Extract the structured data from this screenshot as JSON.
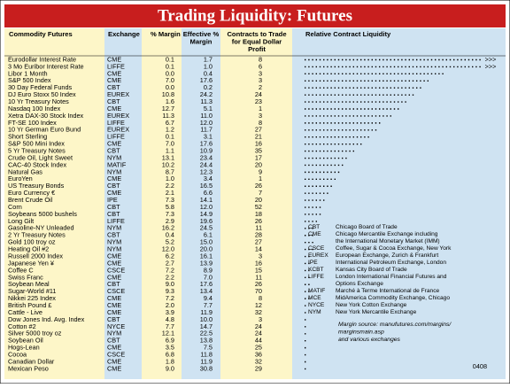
{
  "header": {
    "title": "Trading Liquidity: Futures"
  },
  "table": {
    "columns": [
      "Commodity Futures",
      "Exchange",
      "% Margin",
      "Effective % Margin",
      "Contracts to Trade for Equal Dollar Profit",
      "Relative Contract Liquidity"
    ],
    "rows": [
      {
        "cells": [
          "Eurodollar Interest Rate",
          "CME",
          "0.1",
          "1.7",
          "8"
        ],
        "liquidity": 48,
        "more": ">>>"
      },
      {
        "cells": [
          "3 Mo Euribor Interest Rate",
          "LIFFE",
          "0.1",
          "1.0",
          "6"
        ],
        "liquidity": 48,
        "more": ">>>"
      },
      {
        "cells": [
          "Libor 1 Month",
          "CME",
          "0.0",
          "0.4",
          "3"
        ],
        "liquidity": 38
      },
      {
        "cells": [
          "S&P 500 Index",
          "CME",
          "7.0",
          "17.6",
          "3"
        ],
        "liquidity": 34
      },
      {
        "cells": [
          "30 Day Federal Funds",
          "CBT",
          "0.0",
          "0.2",
          "2"
        ],
        "liquidity": 32
      },
      {
        "cells": [
          "DJ Euro Stoxx 50 Index",
          "EUREX",
          "10.8",
          "24.2",
          "24"
        ],
        "liquidity": 30
      },
      {
        "cells": [
          "10 Yr Treasury Notes",
          "CBT",
          "1.6",
          "11.3",
          "23"
        ],
        "liquidity": 28
      },
      {
        "cells": [
          "Nasdaq 100 Index",
          "CME",
          "12.7",
          "5.1",
          "1"
        ],
        "liquidity": 26
      },
      {
        "cells": [
          "Xetra DAX-30 Stock Index",
          "EUREX",
          "11.3",
          "11.0",
          "3"
        ],
        "liquidity": 24
      },
      {
        "cells": [
          "FT-SE 100 Index",
          "LIFFE",
          "6.7",
          "12.0",
          "8"
        ],
        "liquidity": 21
      },
      {
        "cells": [
          "10 Yr German Euro Bund",
          "EUREX",
          "1.2",
          "11.7",
          "27"
        ],
        "liquidity": 20
      },
      {
        "cells": [
          "Short Sterling",
          "LIFFE",
          "0.1",
          "3.1",
          "21"
        ],
        "liquidity": 18
      },
      {
        "cells": [
          "S&P 500 Mini Index",
          "CME",
          "7.0",
          "17.6",
          "16"
        ],
        "liquidity": 16
      },
      {
        "cells": [
          "5 Yr Treasury Notes",
          "CBT",
          "1.1",
          "10.9",
          "35"
        ],
        "liquidity": 14
      },
      {
        "cells": [
          "Crude Oil, Light Sweet",
          "NYM",
          "13.1",
          "23.4",
          "17"
        ],
        "liquidity": 12
      },
      {
        "cells": [
          "CAC-40 Stock Index",
          "MATIF",
          "10.2",
          "24.4",
          "20"
        ],
        "liquidity": 11
      },
      {
        "cells": [
          "Natural Gas",
          "NYM",
          "8.7",
          "12.3",
          "9"
        ],
        "liquidity": 10
      },
      {
        "cells": [
          "EuroYen",
          "CME",
          "1.0",
          "3.4",
          "1"
        ],
        "liquidity": 9
      },
      {
        "cells": [
          "US Treasury Bonds",
          "CBT",
          "2.2",
          "16.5",
          "26"
        ],
        "liquidity": 8
      },
      {
        "cells": [
          "Euro Currency €",
          "CME",
          "2.1",
          "6.6",
          "7"
        ],
        "liquidity": 7
      },
      {
        "cells": [
          "Brent Crude Oil",
          "IPE",
          "7.3",
          "14.1",
          "20"
        ],
        "liquidity": 6
      },
      {
        "cells": [
          "Corn",
          "CBT",
          "5.8",
          "12.0",
          "52"
        ],
        "liquidity": 5
      },
      {
        "cells": [
          "Soybeans 5000 bushels",
          "CBT",
          "7.3",
          "14.9",
          "18"
        ],
        "liquidity": 5
      },
      {
        "cells": [
          "Long Gilt",
          "LIFFE",
          "2.9",
          "19.6",
          "26"
        ],
        "liquidity": 4
      },
      {
        "cells": [
          "Gasoline-NY Unleaded",
          "NYM",
          "16.2",
          "24.5",
          "11"
        ],
        "liquidity": 3
      },
      {
        "cells": [
          "2 Yr Treasury Notes",
          "CBT",
          "0.4",
          "6.1",
          "28"
        ],
        "liquidity": 3
      },
      {
        "cells": [
          "Gold 100 troy oz",
          "NYM",
          "5.2",
          "15.0",
          "27"
        ],
        "liquidity": 3
      },
      {
        "cells": [
          "Heating Oil #2",
          "NYM",
          "12.0",
          "20.0",
          "14"
        ],
        "liquidity": 3
      },
      {
        "cells": [
          "Russell 2000 Index",
          "CME",
          "6.2",
          "16.1",
          "3"
        ],
        "liquidity": 2
      },
      {
        "cells": [
          "Japanese Yen ¥",
          "CME",
          "2.7",
          "13.9",
          "16"
        ],
        "liquidity": 2
      },
      {
        "cells": [
          "Coffee C",
          "CSCE",
          "7.2",
          "8.9",
          "15"
        ],
        "liquidity": 2
      },
      {
        "cells": [
          "Swiss Franc",
          "CME",
          "2.2",
          "7.0",
          "11"
        ],
        "liquidity": 2
      },
      {
        "cells": [
          "Soybean Meal",
          "CBT",
          "9.0",
          "17.6",
          "26"
        ],
        "liquidity": 2
      },
      {
        "cells": [
          "Sugar-World #11",
          "CSCE",
          "9.3",
          "13.4",
          "70"
        ],
        "liquidity": 2
      },
      {
        "cells": [
          "Nikkei 225 Index",
          "CME",
          "7.2",
          "9.4",
          "8"
        ],
        "liquidity": 2
      },
      {
        "cells": [
          "British Pound £",
          "CME",
          "2.0",
          "7.7",
          "12"
        ],
        "liquidity": 1
      },
      {
        "cells": [
          "Cattle - Live",
          "CME",
          "3.9",
          "11.9",
          "32"
        ],
        "liquidity": 1
      },
      {
        "cells": [
          "Dow Jones Ind. Avg. Index",
          "CBT",
          "4.8",
          "10.0",
          "3"
        ],
        "liquidity": 1
      },
      {
        "cells": [
          "Cotton #2",
          "NYCE",
          "7.7",
          "14.7",
          "24"
        ],
        "liquidity": 1
      },
      {
        "cells": [
          "Silver 5000 troy oz",
          "NYM",
          "12.1",
          "22.5",
          "24"
        ],
        "liquidity": 1
      },
      {
        "cells": [
          "Soybean Oil",
          "CBT",
          "6.9",
          "13.8",
          "44"
        ],
        "liquidity": 1
      },
      {
        "cells": [
          "Hogs-Lean",
          "CME",
          "3.5",
          "7.5",
          "25"
        ],
        "liquidity": 1
      },
      {
        "cells": [
          "Cocoa",
          "CSCE",
          "6.8",
          "11.8",
          "36"
        ],
        "liquidity": 1
      },
      {
        "cells": [
          "Canadian Dollar",
          "CME",
          "1.8",
          "11.9",
          "32"
        ],
        "liquidity": 1
      },
      {
        "cells": [
          "Mexican Peso",
          "CME",
          "9.0",
          "30.8",
          "29"
        ],
        "liquidity": 1
      }
    ]
  },
  "legend": [
    [
      "CBT",
      "Chicago Board of Trade"
    ],
    [
      "CME",
      "Chicago Mercantile Exchange including",
      "the International Monetary Market (IMM)"
    ],
    [
      "CSCE",
      "Coffee, Sugar & Cocoa Exchange, New York"
    ],
    [
      "EUREX",
      "European Exchange, Zurich & Frankfurt"
    ],
    [
      "IPE",
      "International Petroleum Exchange, London"
    ],
    [
      "KCBT",
      "Kansas City Board of Trade"
    ],
    [
      "LIFFE",
      "London International Financial Futures and",
      "Options Exchange"
    ],
    [
      "MATIF",
      "Marché à Terme International de France"
    ],
    [
      "MCE",
      "MidAmerica Commodity Exchange, Chicago"
    ],
    [
      "NYCE",
      "New York Cotton Exchange"
    ],
    [
      "NYM",
      "New York Mercantile Exchange"
    ]
  ],
  "notes": {
    "source": [
      "Margin source: manufutures.com/margins/",
      "marginsmain.asp",
      "and various exchanges"
    ],
    "code": "0408"
  }
}
